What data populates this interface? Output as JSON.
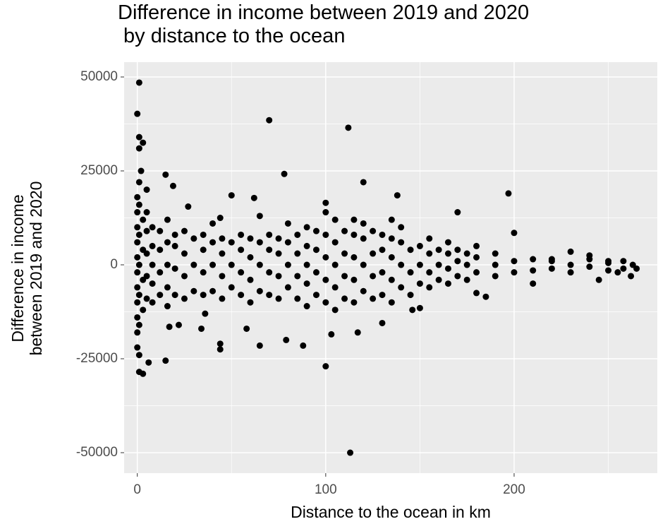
{
  "chart_data": {
    "type": "scatter",
    "title": "Difference in income between 2019 and 2020\n by distance to the ocean",
    "x_label": "Distance to the ocean in km",
    "y_label": "Difference in income\nbetween 2019 and 2020",
    "color": "#000000",
    "grid": true,
    "xlim": [
      -7,
      276
    ],
    "ylim": [
      -55450,
      53950
    ],
    "xticks": [
      0,
      100,
      200
    ],
    "yticks": [
      -50000,
      -25000,
      0,
      25000,
      50000
    ],
    "x": [
      1,
      0,
      1,
      3,
      1,
      70,
      112,
      15,
      19,
      78,
      120,
      197,
      50,
      62,
      138,
      100,
      170,
      27,
      44,
      200,
      5,
      2,
      1,
      3,
      6,
      15,
      44,
      44,
      65,
      88,
      79,
      100,
      113,
      103,
      117,
      130,
      58,
      34,
      22,
      17,
      36,
      150,
      146,
      180,
      185,
      210,
      245,
      262,
      255,
      265,
      240,
      230,
      220,
      250,
      0,
      0,
      0,
      0,
      0,
      0,
      0,
      0,
      0,
      0,
      0,
      1,
      1,
      1,
      1,
      1,
      1,
      1,
      3,
      3,
      3,
      3,
      5,
      5,
      5,
      5,
      5,
      8,
      8,
      8,
      8,
      8,
      12,
      12,
      12,
      12,
      16,
      16,
      16,
      16,
      16,
      20,
      20,
      20,
      20,
      25,
      25,
      25,
      25,
      30,
      30,
      30,
      35,
      35,
      35,
      35,
      40,
      40,
      40,
      40,
      45,
      45,
      45,
      45,
      50,
      50,
      50,
      55,
      55,
      55,
      55,
      60,
      60,
      60,
      60,
      65,
      65,
      65,
      65,
      70,
      70,
      70,
      70,
      75,
      75,
      75,
      75,
      80,
      80,
      80,
      80,
      85,
      85,
      85,
      85,
      90,
      90,
      90,
      90,
      90,
      95,
      95,
      95,
      95,
      100,
      100,
      100,
      100,
      100,
      105,
      105,
      105,
      105,
      105,
      110,
      110,
      110,
      110,
      115,
      115,
      115,
      115,
      115,
      120,
      120,
      120,
      120,
      125,
      125,
      125,
      125,
      130,
      130,
      130,
      130,
      135,
      135,
      135,
      135,
      135,
      140,
      140,
      140,
      140,
      145,
      145,
      145,
      150,
      150,
      150,
      155,
      155,
      155,
      155,
      160,
      160,
      160,
      165,
      165,
      165,
      165,
      170,
      170,
      170,
      175,
      175,
      175,
      180,
      180,
      180,
      190,
      190,
      190,
      200,
      200,
      210,
      210,
      220,
      220,
      230,
      230,
      240,
      240,
      250,
      250,
      258,
      258,
      263
    ],
    "y": [
      48500,
      40200,
      34000,
      32500,
      31000,
      38500,
      36500,
      24000,
      21000,
      24200,
      22000,
      19000,
      18500,
      17800,
      18500,
      16500,
      14000,
      15500,
      12500,
      8500,
      20000,
      25000,
      -28500,
      -29000,
      -26000,
      -25500,
      -21000,
      -22500,
      -21500,
      -21500,
      -20000,
      -27000,
      -50000,
      -18500,
      -18000,
      -15500,
      -17000,
      -17000,
      -16000,
      -16500,
      -13000,
      -11500,
      -12000,
      -7500,
      -8500,
      -5000,
      -4000,
      -3000,
      -2000,
      -1000,
      2500,
      3500,
      1500,
      1000,
      -22000,
      -18000,
      -14000,
      -10000,
      -6000,
      -2000,
      2000,
      6000,
      10000,
      14000,
      18000,
      -24000,
      -16000,
      -8000,
      0,
      8000,
      16000,
      22000,
      -12000,
      -4000,
      4000,
      12000,
      -9000,
      -3000,
      3000,
      9000,
      14000,
      -10000,
      -5000,
      0,
      5000,
      10000,
      -8000,
      -2000,
      4000,
      9000,
      -11000,
      -6000,
      0,
      6000,
      12000,
      -8000,
      -1000,
      5000,
      8000,
      -9000,
      -3000,
      3000,
      9000,
      -7000,
      0,
      7000,
      -8000,
      -2000,
      4000,
      8000,
      -7000,
      0,
      6000,
      11000,
      -9000,
      -3000,
      3000,
      7000,
      -6000,
      0,
      6000,
      -8000,
      -2000,
      4000,
      8000,
      -10000,
      -4000,
      2000,
      7000,
      -7000,
      0,
      6000,
      13000,
      -8000,
      -2000,
      4000,
      8000,
      -9000,
      -3000,
      3000,
      7000,
      -6000,
      0,
      6000,
      11000,
      -9000,
      -3000,
      3000,
      8000,
      -11000,
      -5000,
      0,
      5000,
      10000,
      -8000,
      -2000,
      4000,
      9000,
      -10000,
      -4000,
      2000,
      8000,
      14000,
      -12000,
      -6000,
      0,
      6000,
      12000,
      -9000,
      -3000,
      3000,
      9000,
      -10000,
      -4000,
      2000,
      8000,
      12000,
      -7000,
      0,
      7000,
      11000,
      -9000,
      -3000,
      3000,
      9000,
      -8000,
      -2000,
      4000,
      8000,
      -10000,
      -4000,
      2000,
      7000,
      12000,
      -6000,
      0,
      6000,
      10000,
      -8000,
      -2000,
      4000,
      -5000,
      0,
      5000,
      -6000,
      -2000,
      3000,
      7000,
      -4000,
      0,
      4000,
      -5000,
      -1000,
      3000,
      6000,
      -3000,
      1000,
      4000,
      -4000,
      0,
      3000,
      -2000,
      2000,
      5000,
      -3000,
      0,
      3000,
      -2000,
      1000,
      -1500,
      1500,
      -1000,
      1000,
      -2000,
      0,
      -500,
      1500,
      -1500,
      500,
      -1000,
      1000,
      0
    ]
  }
}
